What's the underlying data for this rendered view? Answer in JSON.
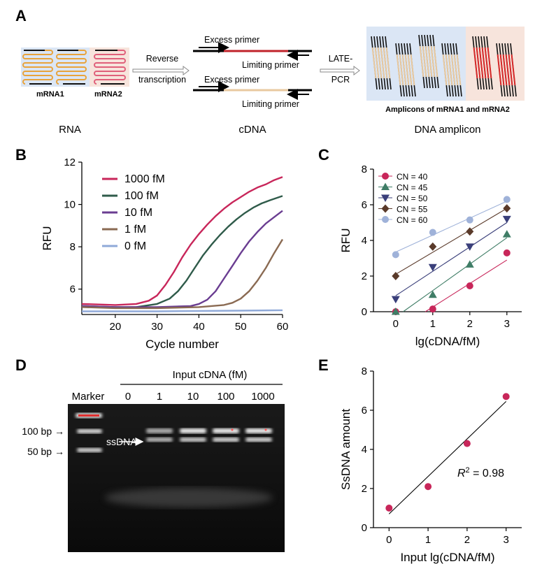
{
  "panel_a": {
    "letter": "A",
    "rna_labels": [
      "mRNA1",
      "mRNA2"
    ],
    "step1_line1": "Reverse",
    "step1_line2": "transcription",
    "primer_top_excess": "Excess primer",
    "primer_top_limiting": "Limiting primer",
    "primer_bot_excess": "Excess primer",
    "primer_bot_limiting": "Limiting primer",
    "step2_line1": "LATE-",
    "step2_line2": "PCR",
    "amplicon_caption": "Amplicons of mRNA1 and mRNA2",
    "stage_labels": [
      "RNA",
      "cDNA",
      "DNA amplicon"
    ],
    "colors": {
      "mrna1": "#e8a33c",
      "mrna2": "#e0607a",
      "bg1": "#dbe6f5",
      "bg2": "#f7e4dc",
      "red_strand": "#d62a2a",
      "tan_strand": "#e8c9a0"
    }
  },
  "chart_data": [
    {
      "panel": "B",
      "type": "line",
      "xlabel": "Cycle number",
      "ylabel": "RFU",
      "xlim": [
        12,
        60
      ],
      "ylim": [
        4.8,
        12
      ],
      "xticks": [
        20,
        30,
        40,
        50,
        60
      ],
      "yticks": [
        6,
        8,
        10,
        12
      ],
      "legend_position": "top-left",
      "series": [
        {
          "name": "1000 fM",
          "color": "#c8265a",
          "x": [
            12,
            20,
            25,
            28,
            30,
            32,
            34,
            36,
            38,
            40,
            42,
            44,
            46,
            48,
            50,
            52,
            54,
            56,
            58,
            60
          ],
          "y": [
            5.3,
            5.25,
            5.3,
            5.45,
            5.7,
            6.2,
            6.8,
            7.5,
            8.1,
            8.6,
            9.05,
            9.45,
            9.8,
            10.1,
            10.35,
            10.6,
            10.8,
            10.95,
            11.15,
            11.3
          ]
        },
        {
          "name": "100 fM",
          "color": "#2f5b4a",
          "x": [
            12,
            20,
            25,
            30,
            33,
            35,
            37,
            39,
            41,
            43,
            45,
            47,
            49,
            51,
            53,
            55,
            57,
            60
          ],
          "y": [
            5.2,
            5.15,
            5.15,
            5.3,
            5.55,
            5.9,
            6.4,
            7.0,
            7.6,
            8.1,
            8.55,
            8.95,
            9.3,
            9.6,
            9.85,
            10.05,
            10.2,
            10.4
          ]
        },
        {
          "name": "10 fM",
          "color": "#6a3d91",
          "x": [
            12,
            20,
            30,
            38,
            40,
            42,
            44,
            46,
            48,
            50,
            52,
            54,
            56,
            58,
            60
          ],
          "y": [
            5.2,
            5.15,
            5.15,
            5.2,
            5.3,
            5.5,
            5.9,
            6.5,
            7.1,
            7.7,
            8.25,
            8.7,
            9.1,
            9.4,
            9.7
          ]
        },
        {
          "name": "1 fM",
          "color": "#8a6a52",
          "x": [
            12,
            20,
            30,
            40,
            46,
            48,
            50,
            52,
            54,
            56,
            58,
            60
          ],
          "y": [
            5.15,
            5.1,
            5.1,
            5.15,
            5.25,
            5.35,
            5.55,
            5.9,
            6.4,
            7.0,
            7.7,
            8.35
          ]
        },
        {
          "name": "0 fM",
          "color": "#8fa9d8",
          "x": [
            12,
            20,
            30,
            40,
            50,
            60
          ],
          "y": [
            4.95,
            4.95,
            4.95,
            4.97,
            4.98,
            5.0
          ]
        }
      ]
    },
    {
      "panel": "C",
      "type": "scatter",
      "xlabel": "lg(cDNA/fM)",
      "ylabel": "RFU",
      "xlim": [
        -0.6,
        3.4
      ],
      "ylim": [
        0,
        8
      ],
      "xticks": [
        0,
        1,
        2,
        3
      ],
      "yticks": [
        0,
        2,
        4,
        6,
        8
      ],
      "legend_position": "top-left",
      "series": [
        {
          "name": "CN = 40",
          "color": "#c8265a",
          "marker": "circle",
          "x": [
            0,
            1,
            2,
            3
          ],
          "y": [
            0.0,
            0.15,
            1.45,
            3.3
          ],
          "fit": [
            [
              0.8,
              0.0
            ],
            [
              3.0,
              2.9
            ]
          ]
        },
        {
          "name": "CN = 45",
          "color": "#3f7d66",
          "marker": "triangle-up",
          "x": [
            0,
            1,
            2,
            3
          ],
          "y": [
            0.0,
            0.95,
            2.65,
            4.35
          ],
          "fit": [
            [
              0.2,
              0.0
            ],
            [
              3.0,
              4.15
            ]
          ]
        },
        {
          "name": "CN = 50",
          "color": "#3a3f7a",
          "marker": "triangle-down",
          "x": [
            0,
            1,
            2,
            3
          ],
          "y": [
            0.7,
            2.5,
            3.65,
            5.2
          ],
          "fit": [
            [
              0.0,
              0.9
            ],
            [
              3.0,
              5.0
            ]
          ]
        },
        {
          "name": "CN = 55",
          "color": "#5a3a2a",
          "marker": "diamond",
          "x": [
            0,
            1,
            2,
            3
          ],
          "y": [
            2.0,
            3.65,
            4.5,
            5.8
          ],
          "fit": [
            [
              0.0,
              2.1
            ],
            [
              3.0,
              5.8
            ]
          ]
        },
        {
          "name": "CN = 60",
          "color": "#9fb2d9",
          "marker": "circle",
          "x": [
            0,
            1,
            2,
            3
          ],
          "y": [
            3.2,
            4.45,
            5.15,
            6.3
          ],
          "fit": [
            [
              0.0,
              3.35
            ],
            [
              3.0,
              6.2
            ]
          ]
        }
      ]
    },
    {
      "panel": "E",
      "type": "scatter",
      "xlabel": "Input lg(cDNA/fM)",
      "ylabel": "SsDNA amount",
      "xlim": [
        -0.4,
        3.4
      ],
      "ylim": [
        0,
        8
      ],
      "xticks": [
        0,
        1,
        2,
        3
      ],
      "yticks": [
        0,
        2,
        4,
        6,
        8
      ],
      "series": [
        {
          "name": "",
          "color": "#c8265a",
          "marker": "circle",
          "x": [
            0,
            1,
            2,
            3
          ],
          "y": [
            1.0,
            2.1,
            4.3,
            6.7
          ],
          "fit": [
            [
              0.0,
              0.7
            ],
            [
              3.0,
              6.45
            ]
          ]
        }
      ],
      "annotation_r": "R",
      "annotation_sup": "2",
      "annotation_rest": " = 0.98"
    }
  ],
  "panel_labels": {
    "b": "B",
    "c": "C",
    "d": "D",
    "e": "E"
  },
  "panel_d": {
    "title": "Input cDNA (fM)",
    "lane_labels": [
      "Marker",
      "0",
      "1",
      "10",
      "100",
      "1000"
    ],
    "size_100": "100 bp →",
    "size_50": "50 bp →",
    "ssdna_label": "ssDNA"
  }
}
